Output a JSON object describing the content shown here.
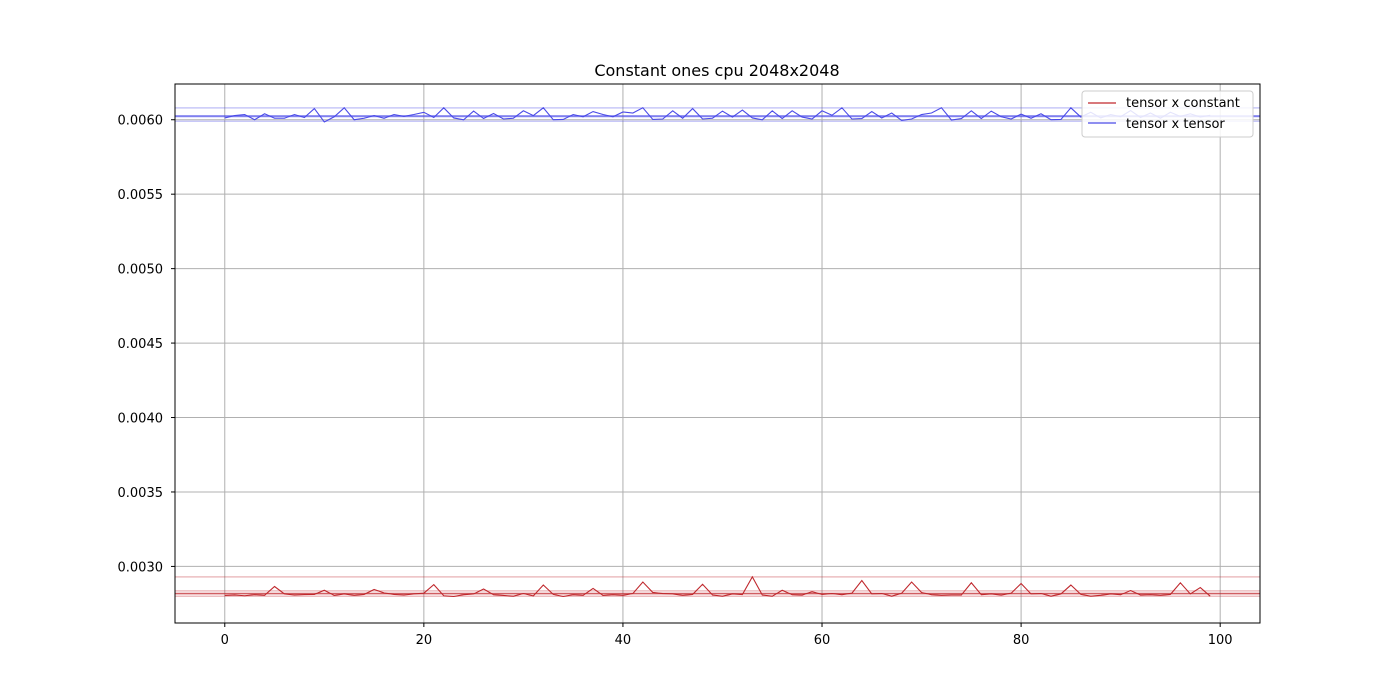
{
  "chart_data": {
    "type": "line",
    "title": "Constant ones cpu 2048x2048",
    "xlabel": "",
    "ylabel": "",
    "xlim": [
      -5,
      104
    ],
    "ylim": [
      0.00262,
      0.00624
    ],
    "xticks": [
      0,
      20,
      40,
      60,
      80,
      100
    ],
    "yticks": [
      0.003,
      0.0035,
      0.004,
      0.0045,
      0.005,
      0.0055,
      0.006
    ],
    "ytick_labels": [
      "0.0030",
      "0.0035",
      "0.0040",
      "0.0045",
      "0.0050",
      "0.0055",
      "0.0060"
    ],
    "grid": true,
    "legend_position": "top-right",
    "series": [
      {
        "name": "tensor x constant",
        "color": "#c0282d",
        "x_start": 0,
        "values": [
          0.002805,
          0.002808,
          0.002803,
          0.00281,
          0.002806,
          0.002865,
          0.002815,
          0.002808,
          0.002811,
          0.002812,
          0.00284,
          0.002805,
          0.002815,
          0.002806,
          0.002812,
          0.002845,
          0.002822,
          0.002812,
          0.002808,
          0.002815,
          0.00282,
          0.002878,
          0.002803,
          0.002798,
          0.00281,
          0.002815,
          0.002848,
          0.00281,
          0.002805,
          0.0028,
          0.002818,
          0.002802,
          0.002875,
          0.002812,
          0.002798,
          0.00281,
          0.002806,
          0.002852,
          0.002805,
          0.00281,
          0.002806,
          0.002818,
          0.002895,
          0.002825,
          0.002818,
          0.002815,
          0.002806,
          0.002812,
          0.00288,
          0.002808,
          0.0028,
          0.002815,
          0.002811,
          0.00293,
          0.002808,
          0.0028,
          0.00284,
          0.00281,
          0.002808,
          0.00283,
          0.002812,
          0.002818,
          0.00281,
          0.00282,
          0.002905,
          0.002815,
          0.002818,
          0.0028,
          0.00282,
          0.002895,
          0.002825,
          0.00281,
          0.002806,
          0.002808,
          0.002808,
          0.00289,
          0.00281,
          0.002815,
          0.002808,
          0.00282,
          0.002885,
          0.002815,
          0.002818,
          0.0028,
          0.002815,
          0.002875,
          0.002812,
          0.0028,
          0.002806,
          0.002815,
          0.00281,
          0.002838,
          0.002808,
          0.00281,
          0.002806,
          0.002812,
          0.00289,
          0.002815,
          0.002858,
          0.0028
        ],
        "mean": 0.002818,
        "bands": [
          0.0028,
          0.002836,
          0.00293
        ]
      },
      {
        "name": "tensor x tensor",
        "color": "#4a4ae8",
        "x_start": 0,
        "values": [
          0.006012,
          0.006028,
          0.006035,
          0.006,
          0.00604,
          0.00601,
          0.00601,
          0.006035,
          0.006015,
          0.006075,
          0.005985,
          0.00602,
          0.00608,
          0.006,
          0.00601,
          0.006028,
          0.00601,
          0.006035,
          0.006022,
          0.006035,
          0.00605,
          0.006015,
          0.00608,
          0.006012,
          0.006,
          0.006058,
          0.006008,
          0.006042,
          0.006005,
          0.00601,
          0.00606,
          0.006028,
          0.00608,
          0.006,
          0.006002,
          0.006035,
          0.00602,
          0.006055,
          0.006035,
          0.00602,
          0.006052,
          0.006045,
          0.00608,
          0.006002,
          0.006005,
          0.00606,
          0.00601,
          0.006075,
          0.006005,
          0.00601,
          0.006058,
          0.006018,
          0.006065,
          0.006012,
          0.006,
          0.00606,
          0.006008,
          0.00606,
          0.006018,
          0.006005,
          0.00606,
          0.00603,
          0.00608,
          0.006005,
          0.006008,
          0.006055,
          0.006012,
          0.006045,
          0.005995,
          0.006005,
          0.006035,
          0.006045,
          0.00608,
          0.005998,
          0.006008,
          0.00606,
          0.006008,
          0.006058,
          0.00602,
          0.006005,
          0.006038,
          0.00601,
          0.00604,
          0.006,
          0.006002,
          0.00608,
          0.006018,
          0.00605,
          0.006012,
          0.006035,
          0.00602,
          0.006062,
          0.006015,
          0.006045,
          0.00601,
          0.00605,
          0.006022,
          0.00604,
          0.006018,
          0.00603
        ],
        "mean": 0.006025,
        "bands": [
          0.00599,
          0.00602,
          0.00608
        ]
      }
    ]
  }
}
